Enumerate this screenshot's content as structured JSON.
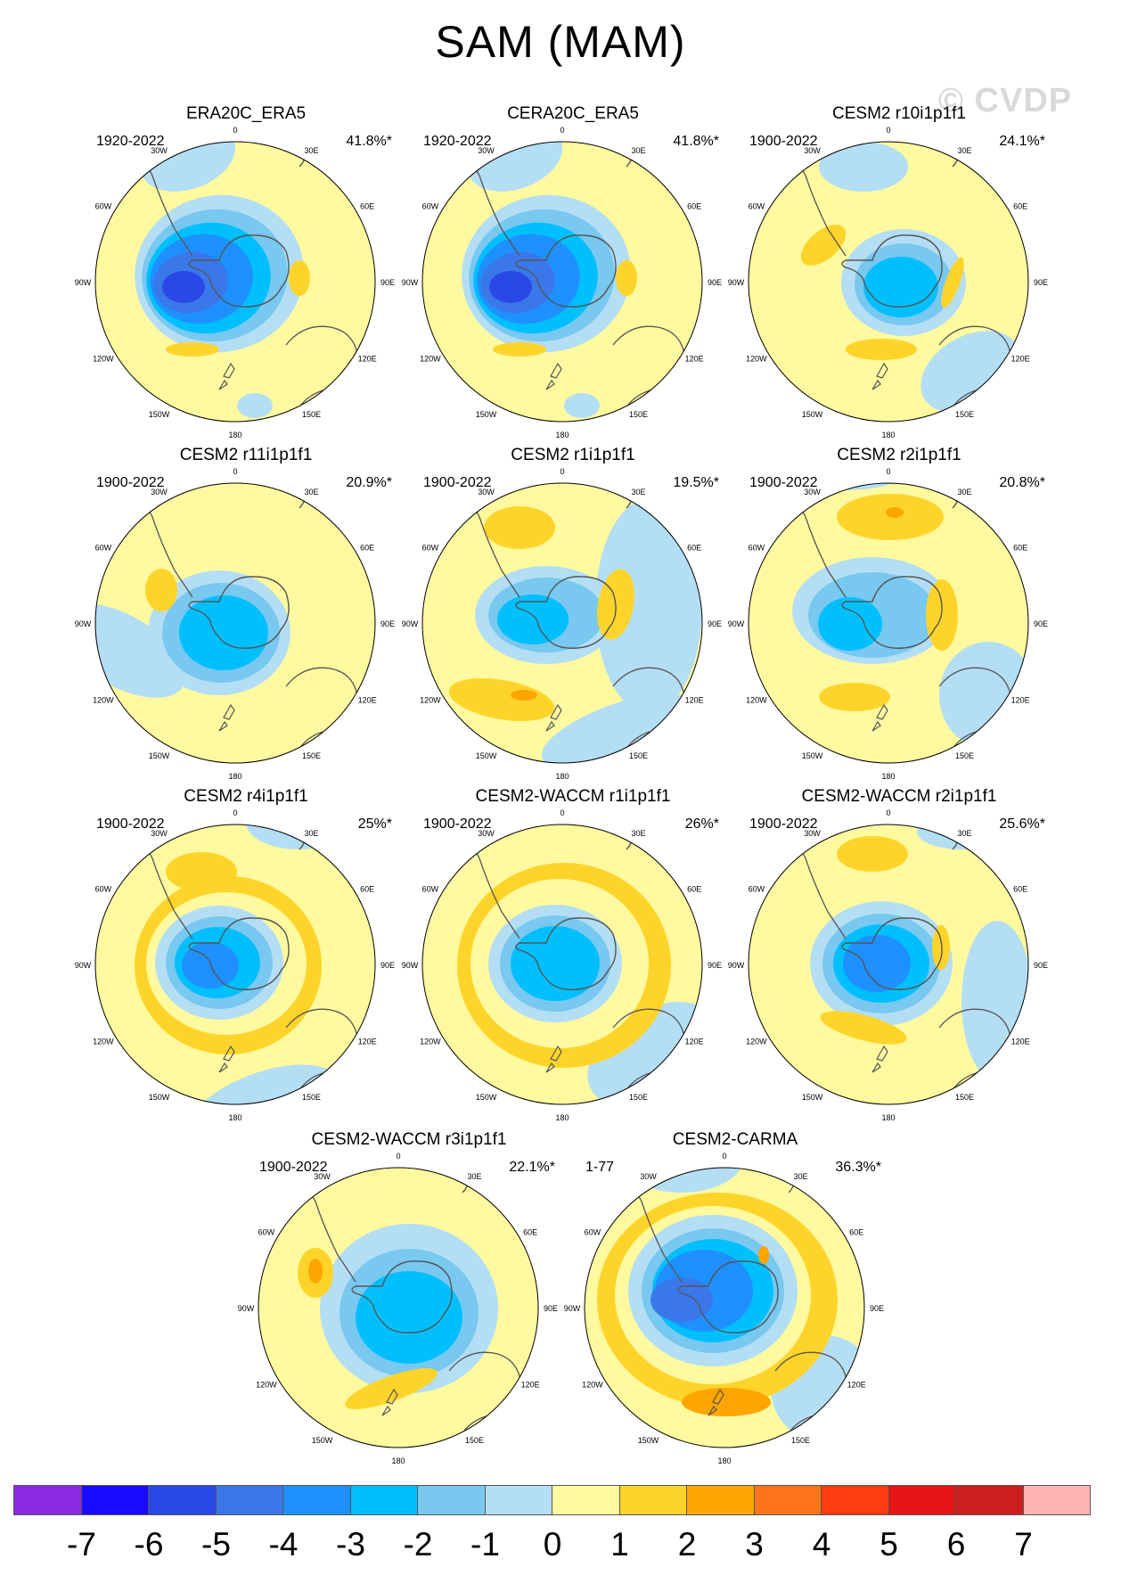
{
  "title": "SAM (MAM)",
  "watermark": "© CVDP",
  "colors": {
    "ocean_land_line": "#555555",
    "palette": [
      "#8a2be2",
      "#1a0aff",
      "#2a48e8",
      "#3a78ea",
      "#1e90ff",
      "#00bfff",
      "#78c8f0",
      "#b4def4",
      "#fffaa0",
      "#ffd42a",
      "#ffa500",
      "#ff7419",
      "#ff3c0f",
      "#e61414",
      "#cd1e1e",
      "#ffb4b4"
    ]
  },
  "colorbar": {
    "labels": [
      "-7",
      "-6",
      "-5",
      "-4",
      "-3",
      "-2",
      "-1",
      "0",
      "1",
      "2",
      "3",
      "4",
      "5",
      "6",
      "7"
    ]
  },
  "longitude_labels": [
    "0",
    "30E",
    "60E",
    "90E",
    "120E",
    "150E",
    "180",
    "150W",
    "120W",
    "90W",
    "60W",
    "30W"
  ],
  "panels": [
    {
      "title": "ERA20C_ERA5",
      "years": "1920-2022",
      "pct": "41.8%*",
      "pattern": "era"
    },
    {
      "title": "CERA20C_ERA5",
      "years": "1920-2022",
      "pct": "41.8%*",
      "pattern": "era"
    },
    {
      "title": "CESM2 r10i1p1f1",
      "years": "1900-2022",
      "pct": "24.1%*",
      "pattern": "r10"
    },
    {
      "title": "CESM2 r11i1p1f1",
      "years": "1900-2022",
      "pct": "20.9%*",
      "pattern": "r11"
    },
    {
      "title": "CESM2 r1i1p1f1",
      "years": "1900-2022",
      "pct": "19.5%*",
      "pattern": "r1"
    },
    {
      "title": "CESM2 r2i1p1f1",
      "years": "1900-2022",
      "pct": "20.8%*",
      "pattern": "r2"
    },
    {
      "title": "CESM2 r4i1p1f1",
      "years": "1900-2022",
      "pct": "25%*",
      "pattern": "r4"
    },
    {
      "title": "CESM2-WACCM r1i1p1f1",
      "years": "1900-2022",
      "pct": "26%*",
      "pattern": "w1"
    },
    {
      "title": "CESM2-WACCM r2i1p1f1",
      "years": "1900-2022",
      "pct": "25.6%*",
      "pattern": "w2"
    },
    {
      "title": "CESM2-WACCM r3i1p1f1",
      "years": "1900-2022",
      "pct": "22.1%*",
      "pattern": "w3"
    },
    {
      "title": "CESM2-CARMA",
      "years": "1-77",
      "pct": "36.3%*",
      "pattern": "carma"
    }
  ]
}
